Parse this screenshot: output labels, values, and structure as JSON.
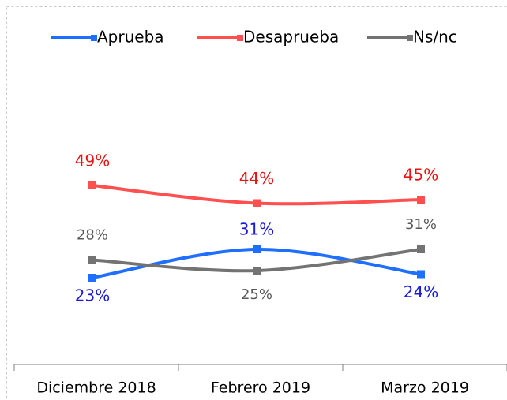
{
  "chart_data": {
    "type": "line",
    "categories": [
      "Diciembre 2018",
      "Febrero 2019",
      "Marzo 2019"
    ],
    "series": [
      {
        "name": "Aprueba",
        "color": "#1e6fff",
        "label_color": "#1a1adb",
        "values": [
          23,
          31,
          24
        ],
        "value_labels": [
          "23%",
          "31%",
          "24%"
        ]
      },
      {
        "name": "Desaprueba",
        "color": "#ff4f4f",
        "label_color": "#ee1111",
        "values": [
          49,
          44,
          45
        ],
        "value_labels": [
          "49%",
          "44%",
          "45%"
        ]
      },
      {
        "name": "Ns/nc",
        "color": "#737373",
        "label_color": "#595959",
        "values": [
          28,
          25,
          31
        ],
        "value_labels": [
          "28%",
          "25%",
          "31%"
        ]
      }
    ],
    "legend": "top"
  }
}
